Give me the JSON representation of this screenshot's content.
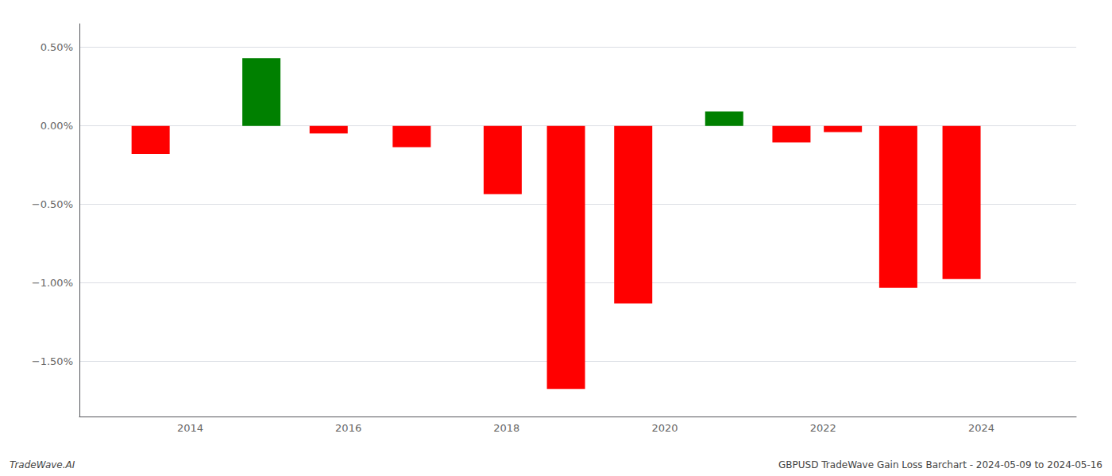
{
  "chart_data": {
    "type": "bar",
    "x": [
      2013.5,
      2014.9,
      2015.75,
      2016.8,
      2017.95,
      2018.75,
      2019.6,
      2020.75,
      2021.6,
      2022.25,
      2022.95,
      2023.75
    ],
    "values": [
      -0.178,
      0.432,
      -0.048,
      -0.135,
      -0.435,
      -1.675,
      -1.13,
      0.092,
      -0.105,
      -0.04,
      -1.03,
      -0.975
    ],
    "colors": [
      "#ff0000",
      "#008000",
      "#ff0000",
      "#ff0000",
      "#ff0000",
      "#ff0000",
      "#ff0000",
      "#008000",
      "#ff0000",
      "#ff0000",
      "#ff0000",
      "#ff0000"
    ],
    "xlim": [
      2012.6,
      2025.2
    ],
    "xticks": [
      2014,
      2016,
      2018,
      2020,
      2022,
      2024
    ],
    "ylim": [
      -1.85,
      0.65
    ],
    "yticks": [
      {
        "value": 0.5,
        "label": "0.50%"
      },
      {
        "value": 0.0,
        "label": "0.00%"
      },
      {
        "value": -0.5,
        "label": "−0.50%"
      },
      {
        "value": -1.0,
        "label": "−1.00%"
      },
      {
        "value": -1.5,
        "label": "−1.50%"
      }
    ],
    "grid": true,
    "annotations": [
      "TradeWave.AI",
      "GBPUSD TradeWave Gain Loss Barchart - 2024-05-09 to 2024-05-16"
    ]
  }
}
